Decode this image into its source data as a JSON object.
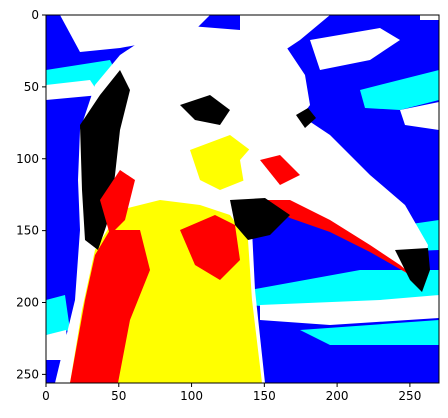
{
  "chart_data": {
    "type": "image",
    "title": "",
    "xlabel": "",
    "ylabel": "",
    "xlim": [
      0,
      270
    ],
    "ylim": [
      256,
      0
    ],
    "x_ticks": [
      0,
      50,
      100,
      150,
      200,
      250
    ],
    "y_ticks": [
      0,
      50,
      100,
      150,
      200,
      250
    ],
    "x_tick_labels": [
      "0",
      "50",
      "100",
      "150",
      "200",
      "250"
    ],
    "y_tick_labels": [
      "0",
      "50",
      "100",
      "150",
      "200",
      "250"
    ],
    "grid": false,
    "legend": "none",
    "image_content": "posterized albatross head profile facing right",
    "palette": {
      "background": "#0000ff",
      "cyan": "#00ffff",
      "white": "#ffffff",
      "yellow": "#ffff00",
      "red": "#ff0000",
      "black": "#000000"
    }
  }
}
